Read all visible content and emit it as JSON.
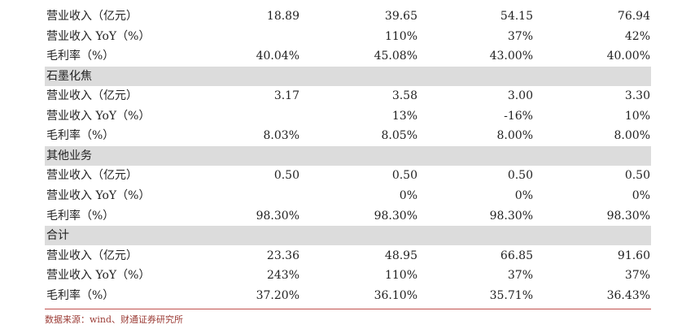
{
  "table": {
    "rows": [
      {
        "type": "data",
        "label": "营业收入（亿元）",
        "values": [
          "18.89",
          "39.65",
          "54.15",
          "76.94"
        ]
      },
      {
        "type": "data",
        "label": "营业收入 YoY（%）",
        "values": [
          "",
          "110%",
          "37%",
          "42%"
        ]
      },
      {
        "type": "data",
        "label": "毛利率（%）",
        "values": [
          "40.04%",
          "45.08%",
          "43.00%",
          "40.00%"
        ]
      },
      {
        "type": "section",
        "label": "石墨化焦"
      },
      {
        "type": "data",
        "label": "营业收入（亿元）",
        "values": [
          "3.17",
          "3.58",
          "3.00",
          "3.30"
        ]
      },
      {
        "type": "data",
        "label": "营业收入 YoY（%）",
        "values": [
          "",
          "13%",
          "-16%",
          "10%"
        ]
      },
      {
        "type": "data",
        "label": "毛利率（%）",
        "values": [
          "8.03%",
          "8.05%",
          "8.00%",
          "8.00%"
        ]
      },
      {
        "type": "section",
        "label": "其他业务"
      },
      {
        "type": "data",
        "label": "营业收入（亿元）",
        "values": [
          "0.50",
          "0.50",
          "0.50",
          "0.50"
        ]
      },
      {
        "type": "data",
        "label": "营业收入 YoY（%）",
        "values": [
          "",
          "0%",
          "0%",
          "0%"
        ]
      },
      {
        "type": "data",
        "label": "毛利率（%）",
        "values": [
          "98.30%",
          "98.30%",
          "98.30%",
          "98.30%"
        ]
      },
      {
        "type": "section",
        "label": "合计"
      },
      {
        "type": "data",
        "label": "营业收入（亿元）",
        "values": [
          "23.36",
          "48.95",
          "66.85",
          "91.60"
        ]
      },
      {
        "type": "data",
        "label": "营业收入 YoY（%）",
        "values": [
          "243%",
          "110%",
          "37%",
          "37%"
        ]
      },
      {
        "type": "data",
        "label": "毛利率（%）",
        "values": [
          "37.20%",
          "36.10%",
          "35.71%",
          "36.43%"
        ]
      }
    ]
  },
  "footer": {
    "source": "数据来源：wind、财通证券研究所",
    "line_color": "#c0504d"
  },
  "colors": {
    "section_background": "#dcdcdc",
    "text": "#222222",
    "source_text": "#9b3b35"
  }
}
